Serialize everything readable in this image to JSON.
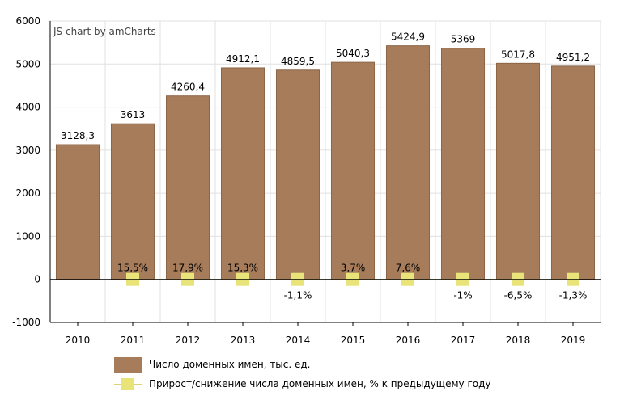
{
  "credit": "JS chart by amCharts",
  "colors": {
    "bar": "#a67c5b",
    "bar_stroke": "#8c6547",
    "marker": "#e8e47a",
    "marker_line": "#d9d27a",
    "grid": "#e0e0e0",
    "axis": "#000000"
  },
  "legend": [
    {
      "label": "Число доменных имен, тыс. ед.",
      "kind": "bar"
    },
    {
      "label": "Прирост/снижение числа доменных имен, % к предыдущему году",
      "kind": "marker"
    }
  ],
  "chart_data": {
    "type": "bar",
    "categories": [
      "2010",
      "2011",
      "2012",
      "2013",
      "2014",
      "2015",
      "2016",
      "2017",
      "2018",
      "2019"
    ],
    "series": [
      {
        "name": "Число доменных имен, тыс. ед.",
        "type": "bar",
        "values": [
          3128.3,
          3613,
          4260.4,
          4912.1,
          4859.5,
          5040.3,
          5424.9,
          5369,
          5017.8,
          4951.2
        ],
        "labels": [
          "3128,3",
          "3613",
          "4260,4",
          "4912,1",
          "4859,5",
          "5040,3",
          "5424,9",
          "5369",
          "5017,8",
          "4951,2"
        ]
      },
      {
        "name": "Прирост/снижение числа доменных имен, % к предыдущему году",
        "type": "marker",
        "values": [
          null,
          15.5,
          17.9,
          15.3,
          -1.1,
          3.7,
          7.6,
          -1,
          -6.5,
          -1.3
        ],
        "labels": [
          "",
          "15,5%",
          "17,9%",
          "15,3%",
          "-1,1%",
          "3,7%",
          "7,6%",
          "-1%",
          "-6,5%",
          "-1,3%"
        ]
      }
    ],
    "ylim": [
      -1000,
      6000
    ],
    "yticks": [
      -1000,
      0,
      1000,
      2000,
      3000,
      4000,
      5000,
      6000
    ],
    "grid": true,
    "legend_position": "bottom"
  }
}
